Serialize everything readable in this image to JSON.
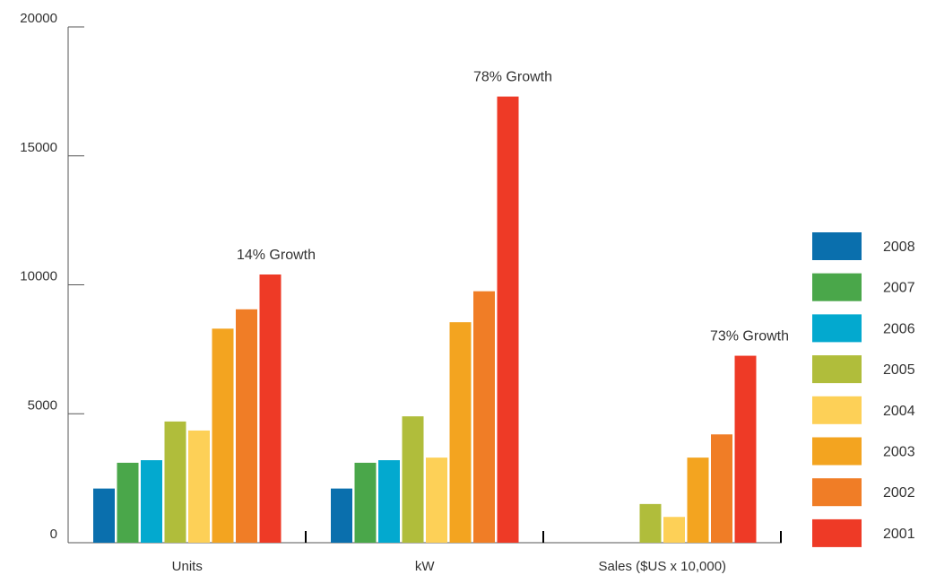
{
  "chart_data": {
    "type": "bar",
    "categories": [
      "Units",
      "kW",
      "Sales ($US x 10,000)"
    ],
    "ylim": [
      0,
      20000
    ],
    "yticks": [
      0,
      5000,
      10000,
      15000,
      20000
    ],
    "series": [
      {
        "name": "2008",
        "color": "#0a6fad",
        "values": [
          2100,
          2100,
          null
        ]
      },
      {
        "name": "2007",
        "color": "#4aa74a",
        "values": [
          3100,
          3100,
          null
        ]
      },
      {
        "name": "2006",
        "color": "#03a9cf",
        "values": [
          3200,
          3200,
          null
        ]
      },
      {
        "name": "2005",
        "color": "#b0bd3b",
        "values": [
          4700,
          4900,
          1500
        ]
      },
      {
        "name": "2004",
        "color": "#fdd057",
        "values": [
          4350,
          3300,
          1000
        ]
      },
      {
        "name": "2003",
        "color": "#f3a420",
        "values": [
          8300,
          8550,
          3300
        ]
      },
      {
        "name": "2002",
        "color": "#f07d26",
        "values": [
          9050,
          9750,
          4200
        ]
      },
      {
        "name": "2001",
        "color": "#ee3a26",
        "values": [
          10400,
          17300,
          7250
        ]
      }
    ],
    "annotations": [
      "14% Growth",
      "78% Growth",
      "73% Growth"
    ],
    "legend_position": "right"
  }
}
